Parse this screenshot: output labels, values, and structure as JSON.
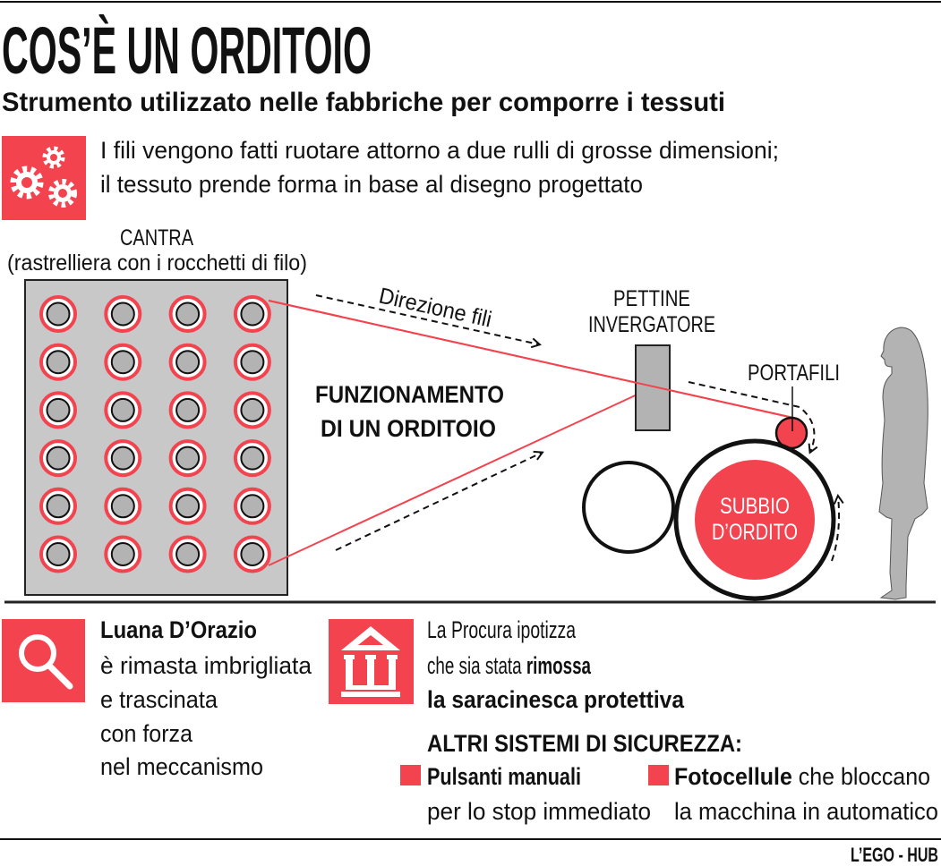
{
  "colors": {
    "accent": "#f2434f",
    "gray_panel": "#c8c8c8",
    "gray_object": "#b3b3b3",
    "ink": "#111111"
  },
  "header": {
    "title": "COS’È UN ORDITOIO",
    "subtitle": "Strumento utilizzato nelle fabbriche per comporre i tessuti"
  },
  "intro": {
    "icon": "gears-icon",
    "lines": [
      "I fili vengono fatti ruotare attorno a due rulli di grosse dimensioni;",
      "il tessuto prende forma in base al disegno progettato"
    ]
  },
  "diagram": {
    "cantra_label": "CANTRA",
    "cantra_sublabel": "(rastrelliera con i rocchetti di filo)",
    "spool_grid": {
      "columns": 4,
      "rows": 6
    },
    "direction_label": "Direzione fili",
    "center_title": [
      "FUNZIONAMENTO",
      "DI UN ORDITOIO"
    ],
    "pettine_label": [
      "PETTINE",
      "INVERGATORE"
    ],
    "portafili_label": "PORTAFILI",
    "subbio_label": [
      "SUBBIO",
      "D’ORDITO"
    ]
  },
  "victim": {
    "icon": "search-icon",
    "name": "Luana D’Orazio",
    "lines": [
      "è rimasta imbrigliata",
      "e trascinata",
      "con forza",
      "nel meccanismo"
    ]
  },
  "investigation": {
    "icon": "courthouse-icon",
    "line1": "La Procura ipotizza",
    "line2_normal": "che sia stata ",
    "line2_bold": "rimossa",
    "line3_bold": "la saracinesca protettiva"
  },
  "safety": {
    "heading": "ALTRI SISTEMI DI SICUREZZA:",
    "items": [
      {
        "bold": "Pulsanti manuali",
        "normal": "",
        "line2": "per lo stop immediato"
      },
      {
        "bold": "Fotocellule",
        "normal": " che bloccano",
        "line2": "la macchina in automatico"
      }
    ]
  },
  "footer": {
    "credit": "L’EGO - HUB"
  }
}
